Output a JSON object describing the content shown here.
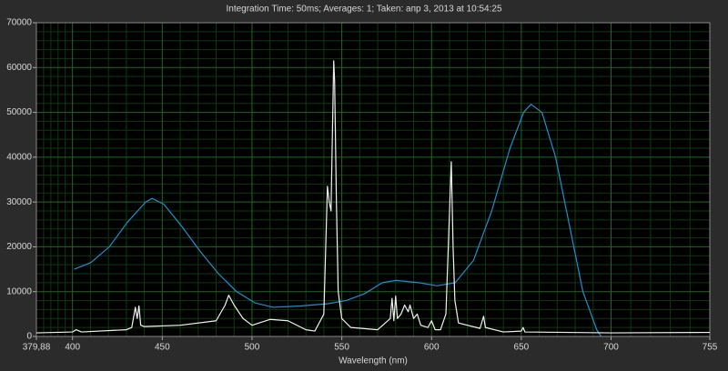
{
  "chart_data": {
    "type": "line",
    "title": "Integration Time: 50ms;  Averages: 1;  Taken: апр 3, 2013 at 10:54:25",
    "x_label": "Wavelength (nm)",
    "xlim": [
      379.88,
      755
    ],
    "xticks": [
      {
        "value": 379.88,
        "label": "379,88"
      },
      400,
      450,
      500,
      550,
      600,
      650,
      700,
      755
    ],
    "ylim": [
      0,
      70000
    ],
    "yticks": [
      0,
      10000,
      20000,
      30000,
      40000,
      50000,
      60000,
      70000
    ],
    "grid": true,
    "minor_grid": 5,
    "series": [
      {
        "color": "#1f8fd0",
        "x": [
          401,
          410.3,
          420.5,
          430.6,
          440.8,
          444.3,
          450.9,
          461,
          471.1,
          481.3,
          491.4,
          501.6,
          511.7,
          527,
          542.2,
          552.3,
          562.5,
          572.6,
          580.2,
          593,
          603,
          613.2,
          623.4,
          633.5,
          643.7,
          651.3,
          655.4,
          661.5,
          669.1,
          676.7,
          684.3,
          692,
          694.5
        ],
        "values": [
          15000,
          16500,
          20000,
          25500,
          30000,
          30800,
          29500,
          24500,
          19000,
          14000,
          10000,
          7500,
          6500,
          6800,
          7300,
          8000,
          9500,
          12000,
          12500,
          12000,
          11300,
          12000,
          17000,
          28000,
          42000,
          50000,
          51800,
          50000,
          40000,
          25000,
          10000,
          1500,
          0
        ]
      },
      {
        "color": "#f2f2f2",
        "x": [
          380,
          400,
          402,
          405,
          430,
          433,
          435,
          436,
          437,
          438,
          440,
          460,
          480,
          485,
          487,
          490,
          495,
          500,
          510,
          520,
          530,
          535,
          540,
          542,
          543,
          544,
          545.5,
          546,
          547,
          548,
          550,
          555,
          570,
          577,
          578,
          579,
          580,
          581,
          583,
          585,
          587,
          588,
          590,
          592,
          594,
          598,
          600,
          602,
          605,
          608,
          611,
          612,
          613,
          615,
          620,
          625,
          627,
          629,
          630,
          640,
          650,
          651,
          652,
          700,
          755
        ],
        "values": [
          800,
          1000,
          1500,
          1000,
          1500,
          2000,
          6500,
          4000,
          6800,
          2500,
          2200,
          2500,
          3500,
          7000,
          9200,
          7000,
          4000,
          2500,
          3800,
          3500,
          1500,
          1200,
          5000,
          33500,
          30000,
          28000,
          61500,
          57000,
          30000,
          10000,
          4000,
          2000,
          1500,
          4000,
          8500,
          3500,
          9000,
          4000,
          5000,
          7000,
          5500,
          7000,
          4000,
          5000,
          2500,
          2000,
          3500,
          1500,
          1500,
          5000,
          39000,
          20000,
          8000,
          3000,
          2500,
          2000,
          1800,
          4500,
          2000,
          1000,
          1200,
          2000,
          1000,
          800,
          900
        ]
      }
    ]
  }
}
